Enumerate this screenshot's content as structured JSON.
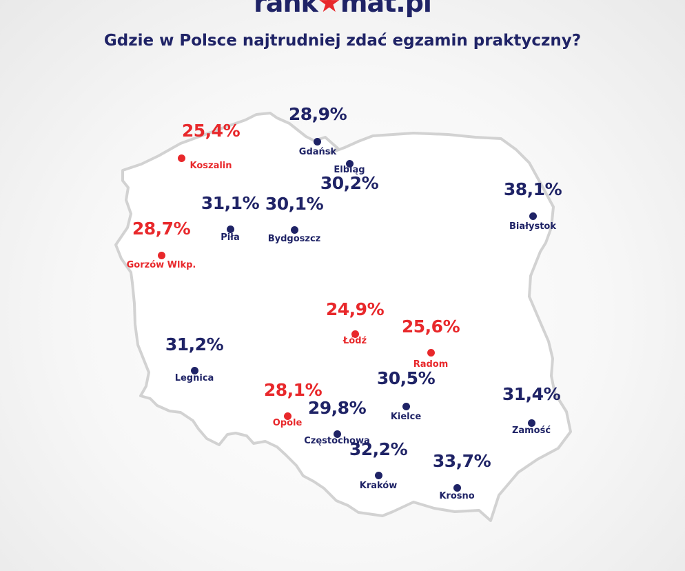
{
  "header": {
    "logo_text": "rank",
    "logo_star": "★",
    "logo_suffix": "mat.pl",
    "title": "Gdzie w Polsce najtrudniej zdać egzamin praktyczny?"
  },
  "colors": {
    "navy": "#1f2366",
    "red": "#e8282b",
    "map_outline": "#d2d2d2",
    "map_fill": "#ffffff",
    "logo_star": "#e8282b"
  },
  "cities": [
    {
      "name": "Koszalin",
      "value": "25,4%",
      "color": "red"
    },
    {
      "name": "Gdańsk",
      "value": "28,9%",
      "color": "navy"
    },
    {
      "name": "Elbląg",
      "value": "30,2%",
      "color": "navy"
    },
    {
      "name": "Piła",
      "value": "31,1%",
      "color": "navy"
    },
    {
      "name": "Bydgoszcz",
      "value": "30,1%",
      "color": "navy"
    },
    {
      "name": "Białystok",
      "value": "38,1%",
      "color": "navy"
    },
    {
      "name": "Gorzów Wlkp.",
      "value": "28,7%",
      "color": "red"
    },
    {
      "name": "Łódź",
      "value": "24,9%",
      "color": "red"
    },
    {
      "name": "Radom",
      "value": "25,6%",
      "color": "red"
    },
    {
      "name": "Legnica",
      "value": "31,2%",
      "color": "navy"
    },
    {
      "name": "Kielce",
      "value": "30,5%",
      "color": "navy"
    },
    {
      "name": "Opole",
      "value": "28,1%",
      "color": "red"
    },
    {
      "name": "Częstochowa",
      "value": "29,8%",
      "color": "navy"
    },
    {
      "name": "Zamość",
      "value": "31,4%",
      "color": "navy"
    },
    {
      "name": "Kraków",
      "value": "32,2%",
      "color": "navy"
    },
    {
      "name": "Krosno",
      "value": "33,7%",
      "color": "navy"
    }
  ]
}
